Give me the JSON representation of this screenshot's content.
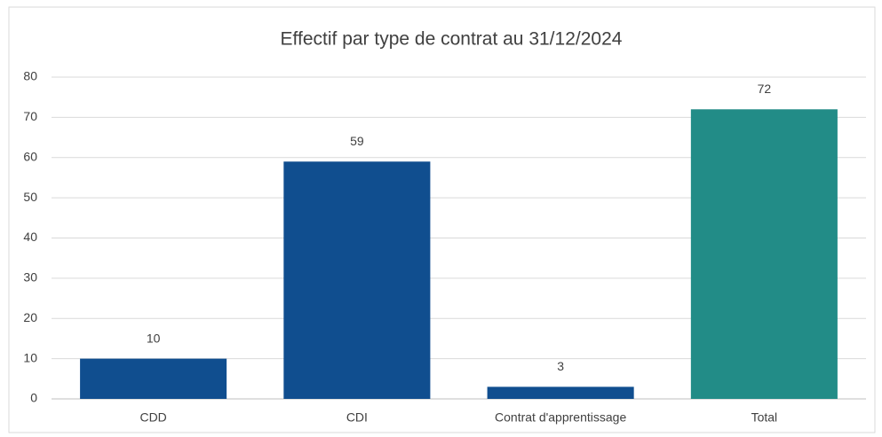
{
  "chart_data": {
    "type": "bar",
    "title": "Effectif par type de contrat au 31/12/2024",
    "categories": [
      "CDD",
      "CDI",
      "Contrat d'apprentissage",
      "Total"
    ],
    "values": [
      10,
      59,
      3,
      72
    ],
    "colors": [
      "#104e8f",
      "#104e8f",
      "#104e8f",
      "#228c87"
    ],
    "ylim": [
      0,
      80
    ],
    "yticks": [
      0,
      10,
      20,
      30,
      40,
      50,
      60,
      70,
      80
    ],
    "grid": true
  }
}
